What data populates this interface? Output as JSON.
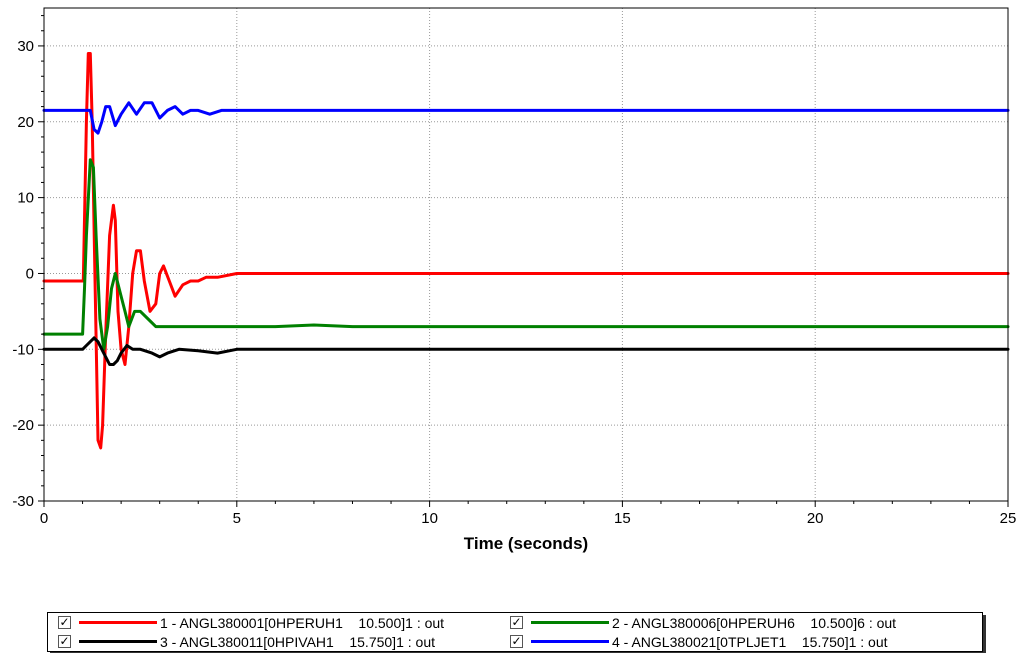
{
  "chart_data": {
    "type": "line",
    "title": "",
    "xlabel": "Time (seconds)",
    "ylabel": "",
    "xlim": [
      0,
      25
    ],
    "ylim": [
      -30,
      35
    ],
    "xticks": [
      0,
      5,
      10,
      15,
      20,
      25
    ],
    "yticks": [
      -30,
      -20,
      -10,
      0,
      10,
      20,
      30
    ],
    "grid": true,
    "legend_position": "bottom",
    "series": [
      {
        "name": "1 - ANGL380001[0HPERUH1    10.500]1 : out",
        "color": "#ff0000",
        "x": [
          0,
          1.0,
          1.02,
          1.1,
          1.15,
          1.2,
          1.25,
          1.32,
          1.4,
          1.47,
          1.52,
          1.6,
          1.7,
          1.8,
          1.85,
          1.92,
          2.0,
          2.1,
          2.2,
          2.3,
          2.4,
          2.5,
          2.6,
          2.75,
          2.9,
          3.0,
          3.1,
          3.25,
          3.4,
          3.6,
          3.8,
          4.0,
          4.2,
          4.5,
          5.0,
          5.5,
          6.0,
          7.0,
          8.0,
          9.0,
          10.0,
          11.0,
          12.0,
          14.0,
          16.0,
          19.0,
          22.0,
          25.0
        ],
        "y": [
          -1,
          -1,
          -1,
          20,
          29,
          29,
          20,
          0,
          -22,
          -23,
          -20,
          -8,
          5,
          9,
          7,
          -5,
          -10,
          -12,
          -7,
          0,
          3,
          3,
          -1,
          -5,
          -4,
          0,
          1,
          -1,
          -3,
          -1.5,
          -1,
          -1,
          -0.5,
          -0.5,
          0,
          0,
          0,
          0,
          0,
          0,
          0,
          0,
          0,
          0,
          0,
          0,
          0,
          0
        ]
      },
      {
        "name": "2 - ANGL380006[0HPERUH6    10.500]6 : out",
        "color": "#008000",
        "x": [
          0,
          1.0,
          1.05,
          1.1,
          1.2,
          1.28,
          1.35,
          1.45,
          1.55,
          1.65,
          1.75,
          1.85,
          2.0,
          2.1,
          2.2,
          2.35,
          2.5,
          2.7,
          2.9,
          3.1,
          3.5,
          4.0,
          4.5,
          5.0,
          6.0,
          7.0,
          8.0,
          10.0,
          12.0,
          15.0,
          20.0,
          25.0
        ],
        "y": [
          -8,
          -8,
          -2,
          5,
          15,
          14,
          5,
          -6,
          -10,
          -7,
          -2,
          0,
          -3,
          -5,
          -7,
          -5,
          -5,
          -6,
          -7,
          -7,
          -7,
          -7,
          -7,
          -7,
          -7,
          -6.8,
          -7,
          -7,
          -7,
          -7,
          -7,
          -7
        ]
      },
      {
        "name": "3 - ANGL380011[0HPIVAH1    15.750]1 : out",
        "color": "#000000",
        "x": [
          0,
          1.0,
          1.1,
          1.2,
          1.3,
          1.4,
          1.5,
          1.6,
          1.7,
          1.8,
          1.9,
          2.0,
          2.15,
          2.3,
          2.5,
          2.8,
          3.0,
          3.2,
          3.5,
          4.0,
          4.5,
          5.0,
          6.0,
          7.0,
          8.0,
          10.0,
          12.0,
          15.0,
          20.0,
          25.0
        ],
        "y": [
          -10,
          -10,
          -9.5,
          -9,
          -8.5,
          -9,
          -10,
          -11,
          -12,
          -12,
          -11.5,
          -10.5,
          -9.5,
          -10,
          -10,
          -10.5,
          -11,
          -10.5,
          -10,
          -10.2,
          -10.5,
          -10,
          -10,
          -10,
          -10,
          -10,
          -10,
          -10,
          -10,
          -10
        ]
      },
      {
        "name": "4 - ANGL380021[0TPLJET1    15.750]1 : out",
        "color": "#0000ff",
        "x": [
          0,
          1.0,
          1.1,
          1.2,
          1.3,
          1.4,
          1.5,
          1.6,
          1.7,
          1.85,
          2.0,
          2.2,
          2.4,
          2.6,
          2.8,
          3.0,
          3.2,
          3.4,
          3.6,
          3.8,
          4.0,
          4.3,
          4.6,
          5.0,
          5.5,
          6.0,
          7.0,
          8.0,
          10.0,
          12.0,
          15.0,
          20.0,
          25.0
        ],
        "y": [
          21.5,
          21.5,
          21.5,
          21.5,
          19,
          18.5,
          20,
          22,
          22,
          19.5,
          21,
          22.5,
          21,
          22.5,
          22.5,
          20.5,
          21.5,
          22,
          21,
          21.5,
          21.5,
          21,
          21.5,
          21.5,
          21.5,
          21.5,
          21.5,
          21.5,
          21.5,
          21.5,
          21.5,
          21.5,
          21.5
        ]
      }
    ]
  },
  "legend": {
    "items": [
      {
        "check": "✓",
        "text": "1 - ANGL380001[0HPERUH1    10.500]1 : out",
        "color": "#ff0000"
      },
      {
        "check": "✓",
        "text": "2 - ANGL380006[0HPERUH6    10.500]6 : out",
        "color": "#008000"
      },
      {
        "check": "✓",
        "text": "3 - ANGL380011[0HPIVAH1    15.750]1 : out",
        "color": "#000000"
      },
      {
        "check": "✓",
        "text": "4 - ANGL380021[0TPLJET1    15.750]1 : out",
        "color": "#0000ff"
      }
    ]
  }
}
